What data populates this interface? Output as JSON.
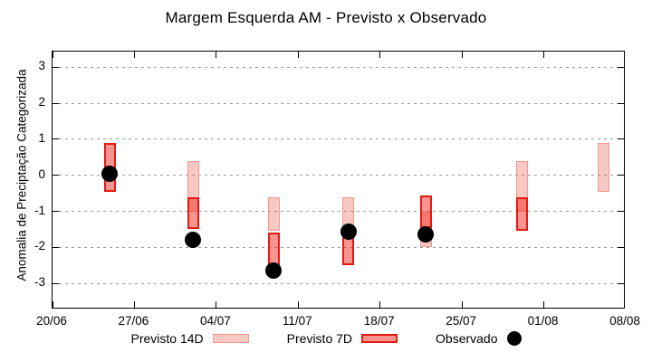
{
  "chart_data": {
    "type": "range-bar",
    "title": "Margem Esquerda AM - Previsto x Observado",
    "ylabel": "Anomalia de Preciptação Categorizada",
    "x_axis": {
      "ticks": [
        "20/06",
        "27/06",
        "04/07",
        "11/07",
        "18/07",
        "25/07",
        "01/08",
        "08/08"
      ],
      "tick_days": [
        0,
        7,
        14,
        21,
        28,
        35,
        42,
        49
      ],
      "range_days": 49
    },
    "y_axis": {
      "ticks": [
        3,
        2,
        1,
        0,
        -1,
        -2,
        -3
      ],
      "min": -3.72,
      "max": 3.43,
      "grid": "dotted"
    },
    "bars": [
      {
        "day": 4.9,
        "previsto_14d": null,
        "previsto_7d": [
          -0.45,
          0.9
        ],
        "observado": 0.05
      },
      {
        "day": 12.0,
        "previsto_14d": [
          -1.0,
          0.4
        ],
        "previsto_7d": [
          -1.5,
          -0.6
        ],
        "observado": -1.8
      },
      {
        "day": 18.9,
        "previsto_14d": [
          -1.55,
          -0.6
        ],
        "previsto_7d": [
          -2.5,
          -1.6
        ],
        "observado": -2.65
      },
      {
        "day": 25.3,
        "previsto_14d": [
          -1.5,
          -0.6
        ],
        "previsto_7d": [
          -2.5,
          -1.55
        ],
        "observado": -1.55
      },
      {
        "day": 31.9,
        "previsto_14d": [
          -2.0,
          -1.0
        ],
        "previsto_7d": [
          -1.45,
          -0.55
        ],
        "observado": -1.65
      },
      {
        "day": 40.1,
        "previsto_14d": [
          -1.0,
          0.4
        ],
        "previsto_7d": [
          -1.55,
          -0.6
        ],
        "observado": null
      },
      {
        "day": 47.1,
        "previsto_14d": [
          -0.45,
          0.9
        ],
        "previsto_7d": null,
        "observado": null
      }
    ],
    "legend_position": "bottom-center"
  },
  "legend": {
    "items": [
      {
        "label": "Previsto 14D"
      },
      {
        "label": "Previsto 7D"
      },
      {
        "label": "Observado"
      }
    ]
  },
  "colors": {
    "p14_fill": "rgba(233,90,70,0.33)",
    "p14_border": "#f0998b",
    "p7_fill": "rgba(237,44,34,0.50)",
    "p7_border": "#e31b12",
    "observed": "#000000",
    "grid": "#9a9a9a",
    "frame": "#000000"
  }
}
